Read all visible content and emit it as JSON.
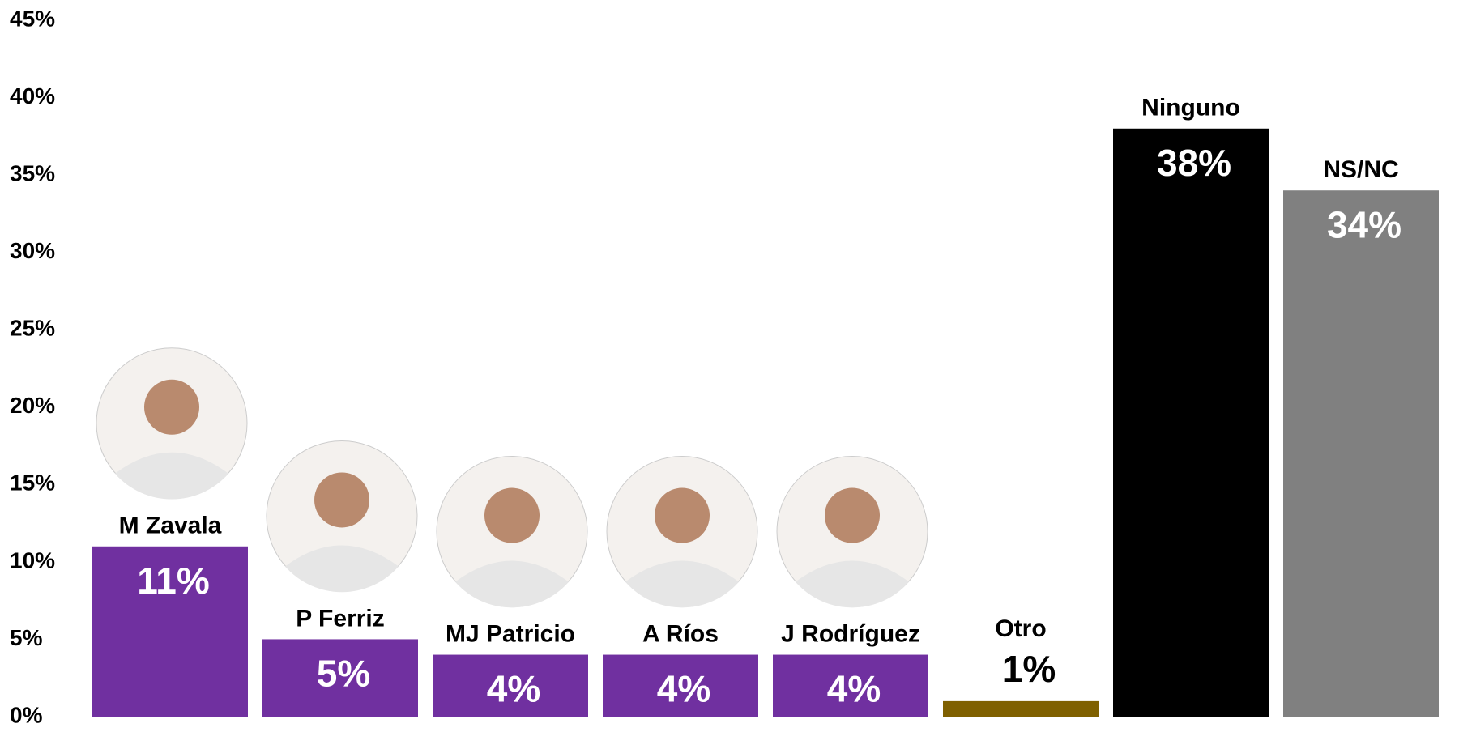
{
  "chart_data": {
    "type": "bar",
    "categories": [
      "M Zavala",
      "P Ferriz",
      "MJ Patricio",
      "A Ríos",
      "J Rodríguez",
      "Otro",
      "Ninguno",
      "NS/NC"
    ],
    "values": [
      11,
      5,
      4,
      4,
      4,
      1,
      38,
      34
    ],
    "value_labels": [
      "11%",
      "5%",
      "4%",
      "4%",
      "4%",
      "1%",
      "38%",
      "34%"
    ],
    "colors": [
      "#7030a0",
      "#7030a0",
      "#7030a0",
      "#7030a0",
      "#7030a0",
      "#7f6000",
      "#000000",
      "#808080"
    ],
    "ylim": [
      0,
      45
    ],
    "yticks": [
      {
        "value": 0,
        "label": "0%"
      },
      {
        "value": 5,
        "label": "5%"
      },
      {
        "value": 10,
        "label": "10%"
      },
      {
        "value": 15,
        "label": "15%"
      },
      {
        "value": 20,
        "label": "20%"
      },
      {
        "value": 25,
        "label": "25%"
      },
      {
        "value": 30,
        "label": "30%"
      },
      {
        "value": 35,
        "label": "35%"
      },
      {
        "value": 40,
        "label": "40%"
      },
      {
        "value": 45,
        "label": "45%"
      }
    ],
    "grid": false
  }
}
